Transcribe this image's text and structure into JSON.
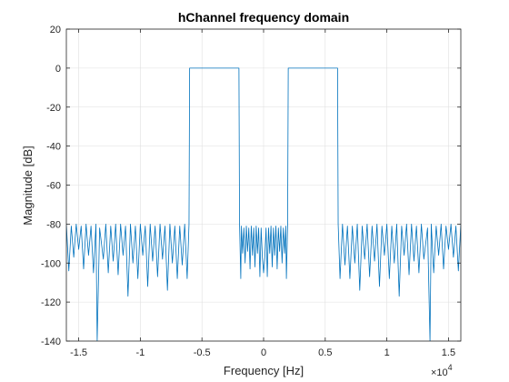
{
  "chart_data": {
    "type": "line",
    "title": "hChannel frequency domain",
    "xlabel": "Frequency [Hz]",
    "ylabel": "Magnitude [dB]",
    "x_exponent_label": "×10",
    "x_exponent_power": "4",
    "xlim": [
      -16000,
      16000
    ],
    "ylim": [
      -140,
      20
    ],
    "xticks": [
      -1.5,
      -1,
      -0.5,
      0,
      0.5,
      1,
      1.5
    ],
    "xtick_labels": [
      "-1.5",
      "-1",
      "-0.5",
      "0",
      "0.5",
      "1",
      "1.5"
    ],
    "yticks": [
      -140,
      -120,
      -100,
      -80,
      -60,
      -40,
      -20,
      0,
      20
    ],
    "ytick_labels": [
      "-140",
      "-120",
      "-100",
      "-80",
      "-60",
      "-40",
      "-20",
      "0",
      "20"
    ],
    "grid": true,
    "line_color": "#0072bd",
    "series": [
      {
        "x": [
          -16000,
          -15800,
          -15600,
          -15400,
          -15200,
          -15000,
          -14800,
          -14600,
          -14400,
          -14200,
          -14000,
          -13800,
          -13600,
          -13500,
          -13300,
          -13000,
          -12800,
          -12600,
          -12400,
          -12200,
          -12000,
          -11800,
          -11600,
          -11400,
          -11200,
          -11000,
          -10800,
          -10600,
          -10400,
          -10200,
          -10000,
          -9800,
          -9600,
          -9400,
          -9200,
          -9000,
          -8800,
          -8600,
          -8400,
          -8200,
          -8000,
          -7800,
          -7600,
          -7400,
          -7200,
          -7000,
          -6800,
          -6600,
          -6400,
          -6200,
          -6050,
          -6000,
          -5950,
          -5800,
          -5000,
          -4000,
          -3000,
          -2500,
          -2050,
          -2000,
          -1950,
          -1850,
          -1800,
          -1700,
          -1600,
          -1500,
          -1400,
          -1300,
          -1200,
          -1100,
          -1000,
          -900,
          -800,
          -700,
          -600,
          -500,
          -400,
          -300,
          -200,
          -100,
          0,
          100,
          200,
          300,
          400,
          500,
          600,
          700,
          800,
          900,
          1000,
          1100,
          1200,
          1300,
          1400,
          1500,
          1600,
          1700,
          1800,
          1850,
          1950,
          2000,
          2050,
          2500,
          3000,
          4000,
          5000,
          5800,
          5950,
          6000,
          6050,
          6200,
          6400,
          6600,
          6800,
          7000,
          7200,
          7400,
          7600,
          7800,
          8000,
          8200,
          8400,
          8600,
          8800,
          9000,
          9200,
          9400,
          9600,
          9800,
          10000,
          10200,
          10400,
          10600,
          10800,
          11000,
          11200,
          11400,
          11600,
          11800,
          12000,
          12200,
          12400,
          12600,
          12800,
          13000,
          13300,
          13500,
          13600,
          13800,
          14000,
          14200,
          14400,
          14600,
          14800,
          15000,
          15200,
          15400,
          15600,
          15800,
          16000
        ],
        "y": [
          -80,
          -104,
          -81,
          -97,
          -80,
          -93,
          -81,
          -103,
          -80,
          -96,
          -81,
          -105,
          -80,
          -140,
          -82,
          -98,
          -80,
          -105,
          -81,
          -99,
          -80,
          -106,
          -80,
          -96,
          -81,
          -117,
          -80,
          -100,
          -81,
          -108,
          -80,
          -96,
          -81,
          -112,
          -80,
          -99,
          -81,
          -107,
          -80,
          -98,
          -81,
          -114,
          -80,
          -100,
          -81,
          -108,
          -81,
          -101,
          -80,
          -108,
          -80,
          0,
          0,
          0,
          0,
          0,
          0,
          0,
          0,
          0,
          -80,
          -108,
          -81,
          -95,
          -82,
          -100,
          -81,
          -94,
          -82,
          -103,
          -81,
          -96,
          -82,
          -102,
          -81,
          -95,
          -82,
          -107,
          -82,
          -97,
          -105,
          -97,
          -82,
          -107,
          -82,
          -95,
          -81,
          -102,
          -82,
          -96,
          -81,
          -103,
          -82,
          -94,
          -81,
          -100,
          -82,
          -95,
          -81,
          -108,
          -80,
          0,
          0,
          0,
          0,
          0,
          0,
          0,
          0,
          0,
          -80,
          -108,
          -80,
          -101,
          -81,
          -108,
          -81,
          -100,
          -80,
          -114,
          -81,
          -98,
          -80,
          -107,
          -81,
          -99,
          -80,
          -112,
          -81,
          -96,
          -80,
          -108,
          -81,
          -100,
          -80,
          -117,
          -81,
          -96,
          -80,
          -106,
          -80,
          -99,
          -81,
          -105,
          -80,
          -98,
          -82,
          -140,
          -80,
          -105,
          -81,
          -96,
          -80,
          -103,
          -81,
          -93,
          -80,
          -97,
          -81,
          -104,
          -80
        ]
      }
    ]
  }
}
